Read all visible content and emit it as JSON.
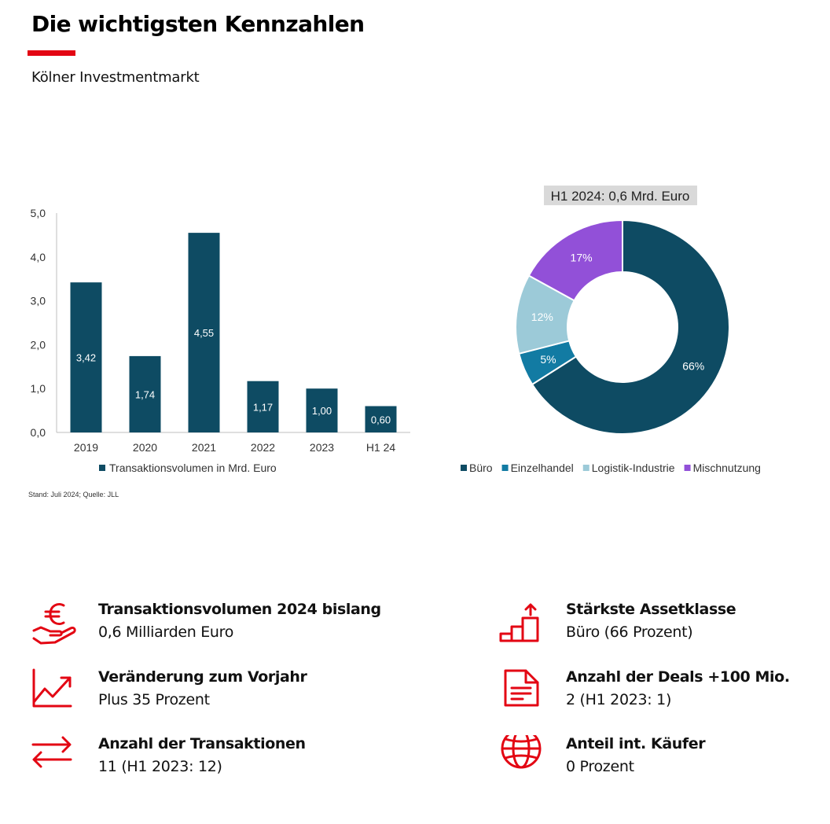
{
  "header": {
    "title": "Die wichtigsten Kennzahlen",
    "subtitle": "Kölner Investmentmarkt"
  },
  "colors": {
    "accent_red": "#e30613",
    "bar": "#0e4b63",
    "buero": "#0e4b63",
    "einzelhandel": "#127ba3",
    "logistik": "#9ccad8",
    "mischnutzung": "#9250d8"
  },
  "chart_data": [
    {
      "type": "bar",
      "categories": [
        "2019",
        "2020",
        "2021",
        "2022",
        "2023",
        "H1 24"
      ],
      "series": [
        {
          "name": "Transaktionsvolumen in Mrd. Euro",
          "values": [
            3.42,
            1.74,
            4.55,
            1.17,
            1.0,
            0.6
          ],
          "labels": [
            "3,42",
            "1,74",
            "4,55",
            "1,17",
            "1,00",
            "0,60"
          ]
        }
      ],
      "ylim": [
        0,
        5
      ],
      "yticks": [
        "0,0",
        "1,0",
        "2,0",
        "3,0",
        "4,0",
        "5,0"
      ],
      "legend": "bottom",
      "grid": false
    },
    {
      "type": "pie",
      "title": "H1 2024: 0,6 Mrd. Euro",
      "donut": true,
      "slices": [
        {
          "name": "Büro",
          "value": 66,
          "label": "66%",
          "color": "#0e4b63"
        },
        {
          "name": "Einzelhandel",
          "value": 5,
          "label": "5%",
          "color": "#127ba3"
        },
        {
          "name": "Logistik-Industrie",
          "value": 12,
          "label": "12%",
          "color": "#9ccad8"
        },
        {
          "name": "Mischnutzung",
          "value": 17,
          "label": "17%",
          "color": "#9250d8"
        }
      ],
      "legend": "bottom"
    }
  ],
  "source_note": "Stand: Juli 2024; Quelle: JLL",
  "kpis": [
    {
      "icon": "euro-hand-icon",
      "title": "Transaktionsvolumen 2024 bislang",
      "value": "0,6 Milliarden Euro"
    },
    {
      "icon": "trend-up-chart-icon",
      "title": "Veränderung zum Vorjahr",
      "value": "Plus 35 Prozent"
    },
    {
      "icon": "exchange-arrows-icon",
      "title": "Anzahl der Transaktionen",
      "value": "11 (H1 2023:  12)"
    },
    {
      "icon": "growth-bars-icon",
      "title": "Stärkste Assetklasse",
      "value": "Büro (66 Prozent)"
    },
    {
      "icon": "document-icon",
      "title": "Anzahl der Deals +100 Mio.",
      "value": "2 (H1 2023: 1)"
    },
    {
      "icon": "globe-icon",
      "title": "Anteil int. Käufer",
      "value": "0 Prozent"
    }
  ]
}
